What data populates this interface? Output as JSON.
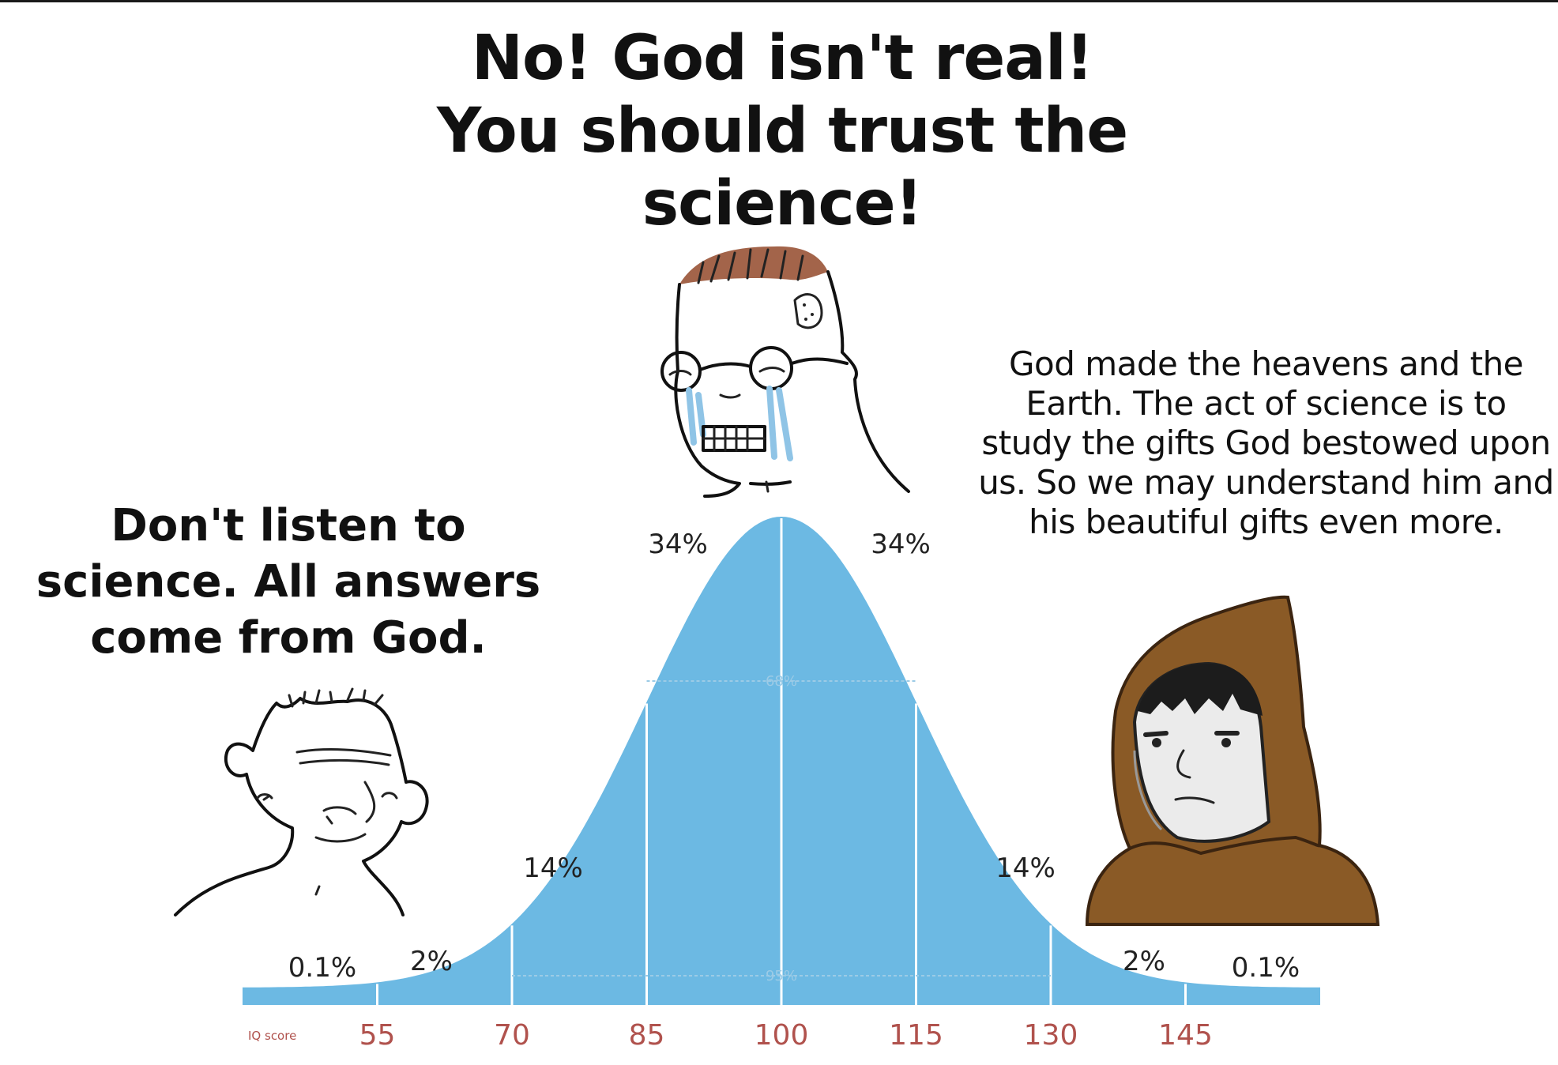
{
  "captions": {
    "middle": "No! God isn't real! You should trust the science!",
    "left": "Don't listen to science. All answers come from God.",
    "right": "God made the heavens and the Earth. The act of science is to study the gifts God bestowed upon us. So we may understand him and his beautiful gifts even more."
  },
  "characters": {
    "left": "wojak-icon",
    "middle": "crying-nerd-wojak-icon",
    "right": "hooded-monk-wojak-icon"
  },
  "colors": {
    "curve": "#6cb9e3",
    "baseline_bar": "#6cb9e3",
    "tick_text": "#b0524d",
    "caption_text": "#111111",
    "monk_robe": "#8a5a26"
  },
  "chart_data": {
    "type": "area",
    "title": "",
    "xlabel": "IQ score",
    "ylabel": "",
    "x_ticks": [
      55,
      70,
      85,
      100,
      115,
      130,
      145
    ],
    "distribution": {
      "mean": 100,
      "sd": 15
    },
    "xlim": [
      40,
      160
    ],
    "segment_labels": [
      {
        "label": "0.1%",
        "range": [
          40,
          55
        ]
      },
      {
        "label": "2%",
        "range": [
          55,
          70
        ]
      },
      {
        "label": "14%",
        "range": [
          70,
          85
        ]
      },
      {
        "label": "34%",
        "range": [
          85,
          100
        ]
      },
      {
        "label": "34%",
        "range": [
          100,
          115
        ]
      },
      {
        "label": "14%",
        "range": [
          115,
          130
        ]
      },
      {
        "label": "2%",
        "range": [
          130,
          145
        ]
      },
      {
        "label": "0.1%",
        "range": [
          145,
          160
        ]
      }
    ],
    "inner_labels": [
      {
        "label": "68%",
        "range": [
          85,
          115
        ]
      },
      {
        "label": "95%",
        "range": [
          70,
          130
        ]
      }
    ],
    "grid": false,
    "legend": "none"
  }
}
